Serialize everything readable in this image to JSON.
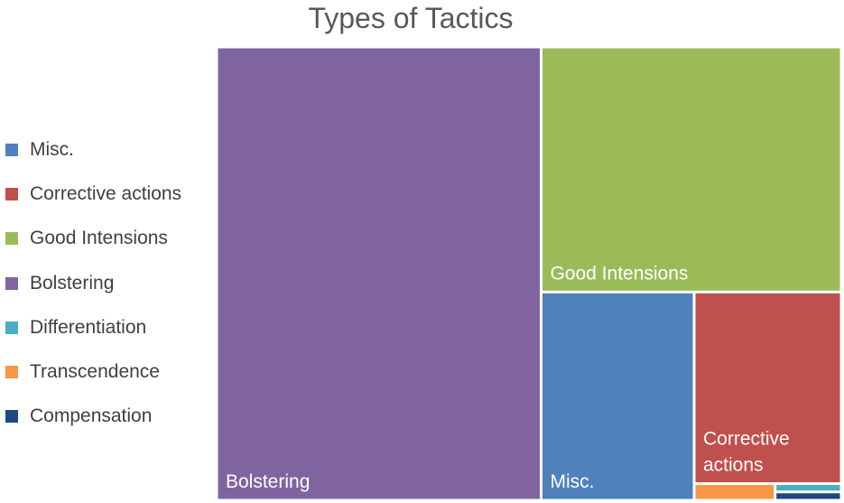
{
  "chart_data": {
    "type": "treemap",
    "title": "Types of Tactics",
    "legend": {
      "position": "left",
      "entries": [
        {
          "name": "Misc.",
          "color": "#4F81BD"
        },
        {
          "name": "Corrective actions",
          "color": "#C0504D"
        },
        {
          "name": "Good Intensions",
          "color": "#9BBB59"
        },
        {
          "name": "Bolstering",
          "color": "#8064A2"
        },
        {
          "name": "Differentiation",
          "color": "#4BACC6"
        },
        {
          "name": "Transcendence",
          "color": "#F79646"
        },
        {
          "name": "Compensation",
          "color": "#1F497D"
        }
      ]
    },
    "values": {
      "Bolstering": 240,
      "Good Intensions": 120,
      "Misc.": 52,
      "Corrective actions": 46,
      "Transcendence": 2.2,
      "Differentiation": 0.9,
      "Compensation": 0.9
    },
    "tile_labels": {
      "Bolstering": [
        "Bolstering"
      ],
      "Good Intensions": [
        "Good Intensions"
      ],
      "Misc.": [
        "Misc."
      ],
      "Corrective actions": [
        "Corrective",
        "actions"
      ],
      "Transcendence": [],
      "Differentiation": [],
      "Compensation": []
    }
  }
}
